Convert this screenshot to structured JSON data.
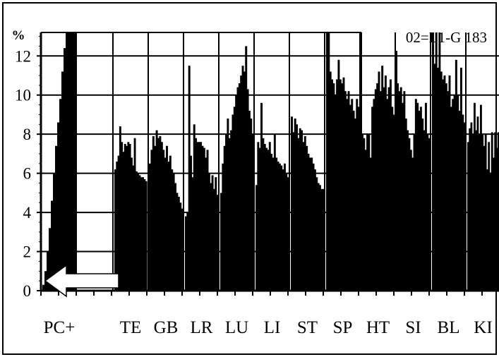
{
  "chart_data": {
    "type": "bar",
    "title": "02=L1-G 183",
    "ylabel": "%",
    "xlabel": "",
    "ylim": [
      0,
      13.2
    ],
    "yticks": [
      0,
      2,
      4,
      6,
      8,
      10,
      12
    ],
    "grid": true,
    "groups": [
      {
        "label": "PC+",
        "values": [
          0.3,
          1.0,
          2.0,
          3.2,
          4.6,
          6.0,
          7.4,
          8.6,
          9.8,
          11.2,
          12.4,
          13.2,
          13.2,
          13.2,
          13.2,
          13.2
        ]
      },
      {
        "label": "TE",
        "values": [
          6.2,
          6.6,
          6.9,
          8.4,
          7.6,
          7.1,
          7.5,
          7.4,
          7.6,
          7.5,
          6.8,
          6.4,
          7.8,
          6.1,
          6.0,
          5.9,
          5.8,
          5.8,
          5.7,
          5.6
        ]
      },
      {
        "label": "GB",
        "values": [
          6.5,
          7.2,
          7.9,
          7.4,
          8.2,
          7.8,
          7.9,
          7.6,
          7.2,
          6.8,
          7.4,
          6.6,
          6.9,
          6.2,
          6.0,
          5.5,
          5.0,
          4.8,
          4.5,
          4.2
        ]
      },
      {
        "label": "LR",
        "values": [
          3.8,
          4.0,
          11.5,
          6.9,
          5.8,
          8.5,
          7.8,
          7.6,
          7.6,
          7.6,
          7.4,
          7.3,
          6.8,
          7.2,
          6.0,
          5.5,
          5.9,
          5.2,
          5.8,
          4.9
        ]
      },
      {
        "label": "LU",
        "values": [
          5.0,
          6.5,
          7.4,
          8.0,
          8.8,
          7.8,
          8.2,
          9.0,
          9.4,
          10.0,
          10.4,
          10.6,
          11.0,
          11.5,
          11.2,
          12.5,
          10.3,
          9.2,
          8.8,
          8.0
        ]
      },
      {
        "label": "LI",
        "values": [
          5.4,
          7.6,
          7.3,
          9.6,
          7.8,
          7.5,
          7.3,
          7.2,
          7.6,
          7.0,
          6.8,
          8.0,
          6.8,
          6.6,
          6.5,
          6.4,
          6.2,
          6.5,
          6.0,
          5.8
        ]
      },
      {
        "label": "ST",
        "values": [
          8.9,
          8.1,
          8.8,
          8.5,
          7.8,
          8.3,
          8.2,
          7.6,
          7.9,
          7.4,
          7.0,
          6.8,
          6.8,
          6.5,
          6.2,
          5.8,
          5.5,
          5.4,
          5.2,
          5.2
        ]
      },
      {
        "label": "SP",
        "values": [
          13.2,
          13.2,
          11.2,
          10.8,
          10.6,
          10.0,
          10.8,
          11.8,
          10.8,
          10.6,
          10.9,
          10.2,
          9.8,
          10.2,
          9.5,
          9.8,
          9.2,
          8.8,
          9.8,
          9.4
        ]
      },
      {
        "label": "HT",
        "values": [
          8.0,
          7.8,
          7.2,
          8.0,
          8.0,
          6.8,
          9.4,
          9.8,
          10.3,
          10.6,
          11.2,
          10.2,
          11.5,
          10.4,
          11.0,
          9.8,
          10.4,
          10.8,
          9.4,
          9.0
        ]
      },
      {
        "label": "SI",
        "values": [
          10.6,
          10.2,
          10.4,
          9.6,
          10.2,
          8.8,
          8.2,
          7.8,
          7.2,
          6.8,
          8.0,
          9.8,
          9.6,
          9.2,
          9.4,
          8.8,
          8.2,
          9.6,
          8.0,
          7.8
        ]
      },
      {
        "label": "BL",
        "values": [
          13.2,
          11.6,
          13.2,
          11.4,
          13.2,
          11.2,
          10.8,
          11.0,
          10.6,
          10.2,
          11.0,
          9.4,
          9.8,
          10.0,
          11.8,
          10.0,
          9.2,
          11.4,
          9.0,
          8.6
        ]
      },
      {
        "label": "KI",
        "values": [
          7.6,
          8.3,
          8.6,
          8.0,
          9.6,
          8.2,
          8.9,
          8.0,
          9.5,
          8.0,
          7.4,
          8.0,
          6.2,
          7.6,
          6.0,
          8.1,
          6.8,
          8.1,
          7.3,
          8.1
        ]
      }
    ]
  }
}
